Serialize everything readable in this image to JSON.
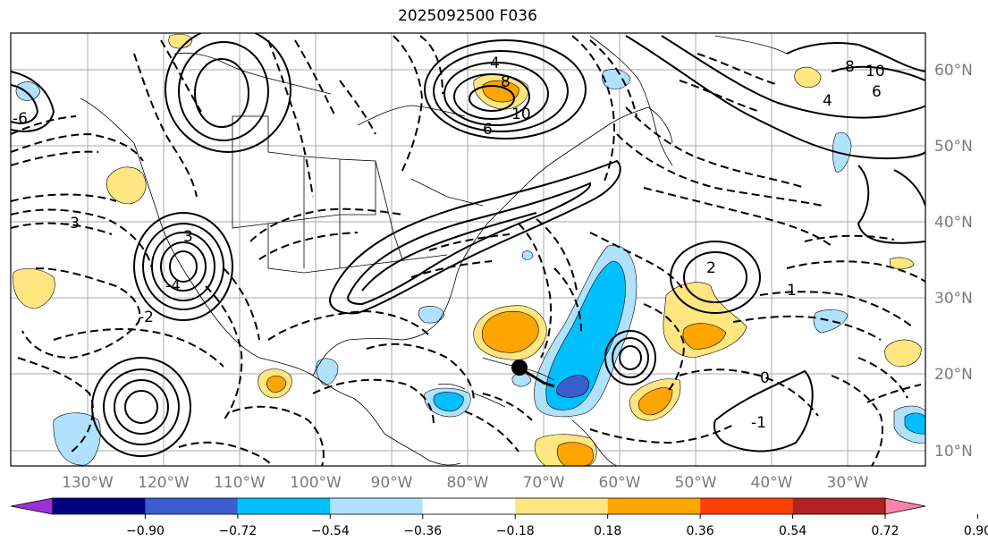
{
  "title": "2025092500 F036",
  "lon_labels": [
    "130°W",
    "120°W",
    "110°W",
    "100°W",
    "90°W",
    "80°W",
    "70°W",
    "60°W",
    "50°W",
    "40°W",
    "30°W"
  ],
  "lat_labels": [
    "60°N",
    "50°N",
    "40°N",
    "30°N",
    "20°N",
    "10°N"
  ],
  "colorbar": {
    "ticks": [
      "−0.90",
      "−0.72",
      "−0.54",
      "−0.36",
      "−0.18",
      "0.18",
      "0.36",
      "0.54",
      "0.72",
      "0.90"
    ],
    "colors": [
      "#9b30d9",
      "#000080",
      "#3a5fcd",
      "#00bfff",
      "#b0e2ff",
      "#ffffff",
      "#ffe680",
      "#ffa500",
      "#ff4000",
      "#b22222",
      "#ff82ab"
    ]
  },
  "contour_labels": [
    "4",
    "8",
    "10",
    "6",
    "4",
    "10",
    "8",
    "6",
    "3",
    "2",
    "1",
    "0",
    "-4",
    "-3",
    "-2",
    "-1",
    "-6"
  ],
  "marker": "storm-center"
}
